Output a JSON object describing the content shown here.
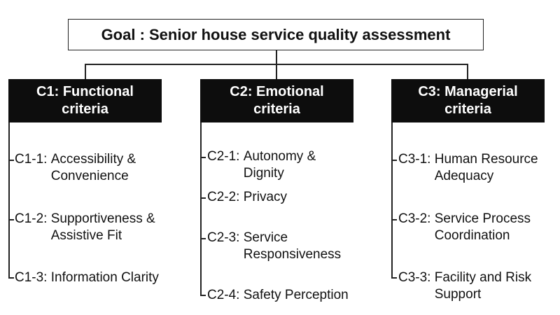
{
  "goal": {
    "text": "Goal : Senior house service quality assessment"
  },
  "categories": [
    {
      "line1": "C1: Functional",
      "line2": "criteria",
      "items": [
        {
          "code": "C1-1:",
          "text": "Accessibility &\nConvenience"
        },
        {
          "code": "C1-2:",
          "text": "Supportiveness &\nAssistive Fit"
        },
        {
          "code": "C1-3:",
          "text": "Information Clarity"
        }
      ]
    },
    {
      "line1": "C2: Emotional",
      "line2": "criteria",
      "items": [
        {
          "code": "C2-1:",
          "text": "Autonomy &\nDignity"
        },
        {
          "code": "C2-2:",
          "text": "Privacy"
        },
        {
          "code": "C2-3:",
          "text": "Service\nResponsiveness"
        },
        {
          "code": "C2-4:",
          "text": "Safety Perception"
        }
      ]
    },
    {
      "line1": "C3: Managerial",
      "line2": "criteria",
      "items": [
        {
          "code": "C3-1:",
          "text": "Human Resource\nAdequacy"
        },
        {
          "code": "C3-2:",
          "text": "Service Process\nCoordination"
        },
        {
          "code": "C3-3:",
          "text": "Facility and Risk\nSupport"
        }
      ]
    }
  ]
}
